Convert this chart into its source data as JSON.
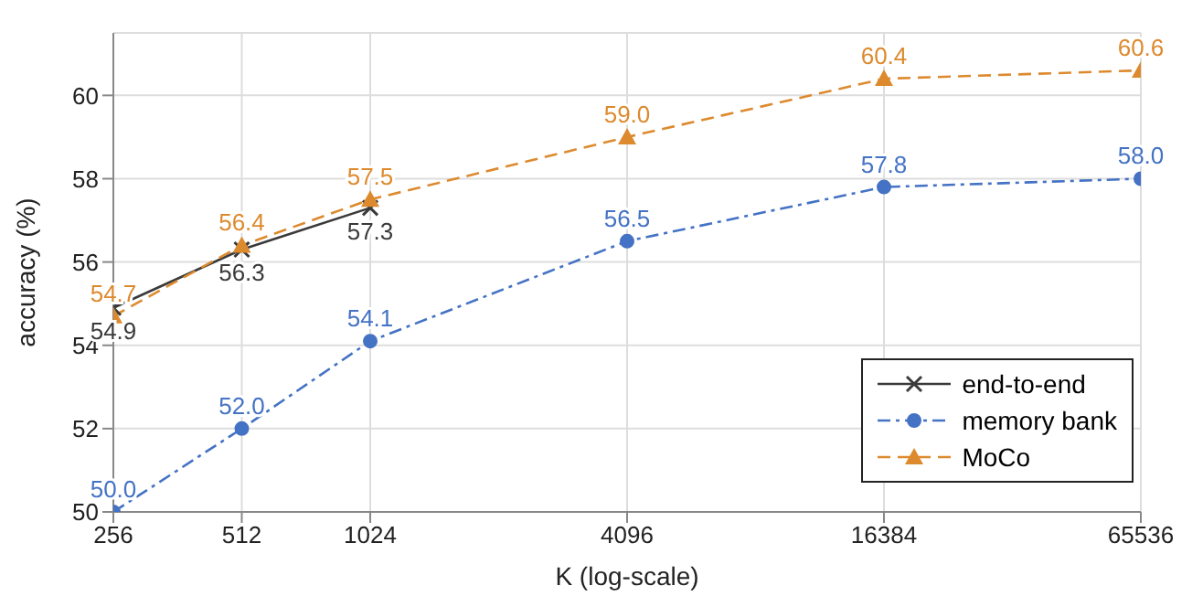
{
  "chart_data": {
    "type": "line",
    "xlabel": "K (log-scale)",
    "ylabel": "accuracy (%)",
    "log": "x",
    "xlim": [
      256,
      65536
    ],
    "xticks": [
      256,
      512,
      1024,
      4096,
      16384,
      65536
    ],
    "ylim": [
      50,
      61.5
    ],
    "yticks": [
      50,
      52,
      54,
      56,
      58,
      60
    ],
    "grid": true,
    "legend": "bottom right",
    "series": [
      {
        "name": "end-to-end",
        "color": "#3a3a3a",
        "marker": "cross",
        "line_style": "solid",
        "x": [
          256,
          512,
          1024
        ],
        "values": [
          54.9,
          56.3,
          57.3
        ],
        "value_labels": [
          "54.9",
          "56.3",
          "57.3"
        ]
      },
      {
        "name": "memory bank",
        "color": "#4472c4",
        "marker": "circle",
        "line_style": "dashdot",
        "x": [
          256,
          512,
          1024,
          4096,
          16384,
          65536
        ],
        "values": [
          50.0,
          52.0,
          54.1,
          56.5,
          57.8,
          58.0
        ],
        "value_labels": [
          "50.0",
          "52.0",
          "54.1",
          "56.5",
          "57.8",
          "58.0"
        ]
      },
      {
        "name": "MoCo",
        "color": "#dd8a2e",
        "marker": "triangle",
        "line_style": "dashed",
        "x": [
          256,
          512,
          1024,
          4096,
          16384,
          65536
        ],
        "values": [
          54.7,
          56.4,
          57.5,
          59.0,
          60.4,
          60.6
        ],
        "value_labels": [
          "54.7",
          "56.4",
          "57.5",
          "59.0",
          "60.4",
          "60.6"
        ]
      }
    ]
  }
}
